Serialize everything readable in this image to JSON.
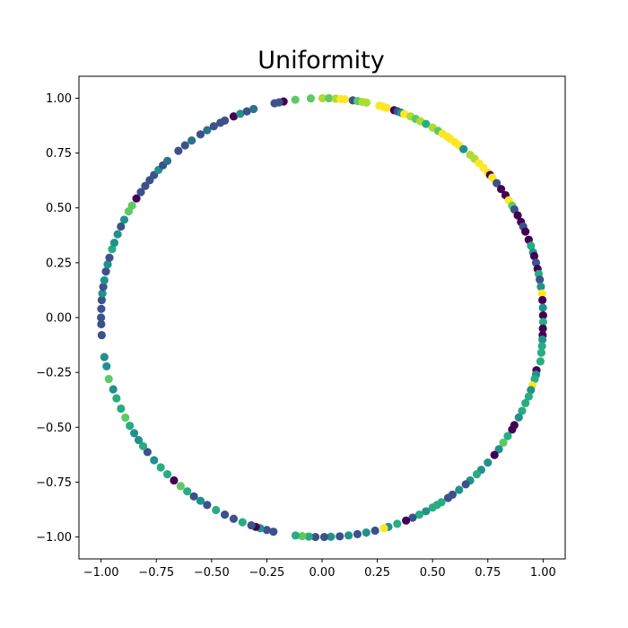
{
  "chart_data": {
    "type": "scatter",
    "title": "Uniformity",
    "xlabel": "",
    "ylabel": "",
    "xlim": [
      -1.1,
      1.1
    ],
    "ylim": [
      -1.1,
      1.1
    ],
    "grid": false,
    "legend": false,
    "colormap": "viridis",
    "xticks": [
      "−1.00",
      "−0.75",
      "−0.50",
      "−0.25",
      "0.00",
      "0.25",
      "0.50",
      "0.75",
      "1.00"
    ],
    "yticks": [
      "1.00",
      "0.75",
      "0.50",
      "0.25",
      "0.00",
      "−0.25",
      "−0.50",
      "−0.75",
      "−1.00"
    ],
    "xtick_values": [
      -1.0,
      -0.75,
      -0.5,
      -0.25,
      0.0,
      0.25,
      0.5,
      0.75,
      1.0
    ],
    "ytick_values": [
      1.0,
      0.75,
      0.5,
      0.25,
      0.0,
      -0.25,
      -0.5,
      -0.75,
      -1.0
    ],
    "colors": {
      "dark_purple": "#440154",
      "indigo": "#3b528b",
      "blue": "#2c728e",
      "teal": "#21918c",
      "green": "#27ad81",
      "light_green": "#5ec962",
      "lime": "#addc30",
      "yellow": "#fde725"
    },
    "points": [
      {
        "x": 0.002,
        "y": 1.0,
        "color": "#addc30"
      },
      {
        "x": 0.031,
        "y": 1.0,
        "color": "#5ec962"
      },
      {
        "x": 0.062,
        "y": 0.998,
        "color": "#addc30"
      },
      {
        "x": -0.051,
        "y": 0.999,
        "color": "#5ec962"
      },
      {
        "x": -0.121,
        "y": 0.993,
        "color": "#5ec962"
      },
      {
        "x": 0.084,
        "y": 0.996,
        "color": "#fde725"
      },
      {
        "x": 0.103,
        "y": 0.995,
        "color": "#fde725"
      },
      {
        "x": 0.139,
        "y": 0.99,
        "color": "#3b528b"
      },
      {
        "x": 0.161,
        "y": 0.987,
        "color": "#5ec962"
      },
      {
        "x": 0.183,
        "y": 0.983,
        "color": "#addc30"
      },
      {
        "x": 0.201,
        "y": 0.98,
        "color": "#addc30"
      },
      {
        "x": -0.174,
        "y": 0.985,
        "color": "#440154"
      },
      {
        "x": -0.195,
        "y": 0.981,
        "color": "#3b528b"
      },
      {
        "x": -0.215,
        "y": 0.977,
        "color": "#3b528b"
      },
      {
        "x": 0.259,
        "y": 0.966,
        "color": "#fde725"
      },
      {
        "x": 0.276,
        "y": 0.961,
        "color": "#fde725"
      },
      {
        "x": 0.292,
        "y": 0.956,
        "color": "#fde725"
      },
      {
        "x": 0.326,
        "y": 0.945,
        "color": "#440154"
      },
      {
        "x": 0.342,
        "y": 0.94,
        "color": "#3b528b"
      },
      {
        "x": 0.358,
        "y": 0.934,
        "color": "#21918c"
      },
      {
        "x": 0.372,
        "y": 0.928,
        "color": "#fde725"
      },
      {
        "x": 0.4,
        "y": 0.917,
        "color": "#addc30"
      },
      {
        "x": 0.423,
        "y": 0.906,
        "color": "#5ec962"
      },
      {
        "x": 0.445,
        "y": 0.895,
        "color": "#addc30"
      },
      {
        "x": 0.47,
        "y": 0.883,
        "color": "#27ad81"
      },
      {
        "x": 0.5,
        "y": 0.866,
        "color": "#addc30"
      },
      {
        "x": 0.525,
        "y": 0.851,
        "color": "#5ec962"
      },
      {
        "x": 0.545,
        "y": 0.838,
        "color": "#fde725"
      },
      {
        "x": 0.565,
        "y": 0.825,
        "color": "#fde725"
      },
      {
        "x": 0.58,
        "y": 0.815,
        "color": "#fde725"
      },
      {
        "x": 0.6,
        "y": 0.8,
        "color": "#fde725"
      },
      {
        "x": 0.62,
        "y": 0.785,
        "color": "#fde725"
      },
      {
        "x": 0.64,
        "y": 0.768,
        "color": "#21918c"
      },
      {
        "x": 0.67,
        "y": 0.742,
        "color": "#addc30"
      },
      {
        "x": 0.69,
        "y": 0.724,
        "color": "#addc30"
      },
      {
        "x": 0.71,
        "y": 0.704,
        "color": "#fde725"
      },
      {
        "x": 0.73,
        "y": 0.683,
        "color": "#fde725"
      },
      {
        "x": 0.75,
        "y": 0.661,
        "color": "#fde725"
      },
      {
        "x": 0.76,
        "y": 0.65,
        "color": "#440154"
      },
      {
        "x": 0.77,
        "y": 0.638,
        "color": "#fde725"
      },
      {
        "x": 0.79,
        "y": 0.613,
        "color": "#3b528b"
      },
      {
        "x": 0.81,
        "y": 0.586,
        "color": "#440154"
      },
      {
        "x": 0.83,
        "y": 0.558,
        "color": "#440154"
      },
      {
        "x": 0.845,
        "y": 0.535,
        "color": "#fde725"
      },
      {
        "x": 0.86,
        "y": 0.51,
        "color": "#5ec962"
      },
      {
        "x": 0.87,
        "y": 0.493,
        "color": "#3b528b"
      },
      {
        "x": 0.885,
        "y": 0.466,
        "color": "#440154"
      },
      {
        "x": 0.9,
        "y": 0.436,
        "color": "#440154"
      },
      {
        "x": 0.91,
        "y": 0.415,
        "color": "#3b528b"
      },
      {
        "x": 0.92,
        "y": 0.392,
        "color": "#440154"
      },
      {
        "x": 0.935,
        "y": 0.355,
        "color": "#440154"
      },
      {
        "x": 0.945,
        "y": 0.327,
        "color": "#27ad81"
      },
      {
        "x": 0.955,
        "y": 0.297,
        "color": "#21918c"
      },
      {
        "x": 0.96,
        "y": 0.28,
        "color": "#440154"
      },
      {
        "x": 0.968,
        "y": 0.25,
        "color": "#3b528b"
      },
      {
        "x": 0.975,
        "y": 0.222,
        "color": "#440154"
      },
      {
        "x": 0.98,
        "y": 0.199,
        "color": "#27ad81"
      },
      {
        "x": 0.985,
        "y": 0.173,
        "color": "#3b528b"
      },
      {
        "x": 0.99,
        "y": 0.141,
        "color": "#21918c"
      },
      {
        "x": 0.995,
        "y": 0.11,
        "color": "#fde725"
      },
      {
        "x": 0.997,
        "y": 0.08,
        "color": "#440154"
      },
      {
        "x": 0.999,
        "y": 0.045,
        "color": "#21918c"
      },
      {
        "x": 1.0,
        "y": 0.01,
        "color": "#440154"
      },
      {
        "x": 1.0,
        "y": -0.02,
        "color": "#27ad81"
      },
      {
        "x": 0.999,
        "y": -0.05,
        "color": "#440154"
      },
      {
        "x": 0.998,
        "y": -0.08,
        "color": "#440154"
      },
      {
        "x": 0.997,
        "y": -0.1,
        "color": "#21918c"
      },
      {
        "x": 0.995,
        "y": -0.13,
        "color": "#27ad81"
      },
      {
        "x": 0.992,
        "y": -0.16,
        "color": "#27ad81"
      },
      {
        "x": 0.988,
        "y": -0.2,
        "color": "#27ad81"
      },
      {
        "x": 0.97,
        "y": -0.24,
        "color": "#440154"
      },
      {
        "x": 0.968,
        "y": -0.26,
        "color": "#21918c"
      },
      {
        "x": 0.962,
        "y": -0.28,
        "color": "#27ad81"
      },
      {
        "x": 0.952,
        "y": -0.31,
        "color": "#fde725"
      },
      {
        "x": 0.945,
        "y": -0.33,
        "color": "#21918c"
      },
      {
        "x": 0.935,
        "y": -0.36,
        "color": "#27ad81"
      },
      {
        "x": 0.92,
        "y": -0.39,
        "color": "#27ad81"
      },
      {
        "x": 0.905,
        "y": -0.425,
        "color": "#27ad81"
      },
      {
        "x": 0.89,
        "y": -0.455,
        "color": "#21918c"
      },
      {
        "x": 0.87,
        "y": -0.49,
        "color": "#440154"
      },
      {
        "x": 0.86,
        "y": -0.51,
        "color": "#440154"
      },
      {
        "x": 0.84,
        "y": -0.54,
        "color": "#27ad81"
      },
      {
        "x": 0.82,
        "y": -0.57,
        "color": "#5ec962"
      },
      {
        "x": 0.8,
        "y": -0.6,
        "color": "#21918c"
      },
      {
        "x": 0.78,
        "y": -0.626,
        "color": "#440154"
      },
      {
        "x": 0.75,
        "y": -0.661,
        "color": "#21918c"
      },
      {
        "x": 0.72,
        "y": -0.694,
        "color": "#21918c"
      },
      {
        "x": 0.7,
        "y": -0.714,
        "color": "#27ad81"
      },
      {
        "x": 0.67,
        "y": -0.742,
        "color": "#21918c"
      },
      {
        "x": 0.65,
        "y": -0.76,
        "color": "#3b528b"
      },
      {
        "x": 0.62,
        "y": -0.785,
        "color": "#21918c"
      },
      {
        "x": 0.59,
        "y": -0.807,
        "color": "#3b528b"
      },
      {
        "x": 0.57,
        "y": -0.822,
        "color": "#3b528b"
      },
      {
        "x": 0.54,
        "y": -0.842,
        "color": "#27ad81"
      },
      {
        "x": 0.52,
        "y": -0.854,
        "color": "#27ad81"
      },
      {
        "x": 0.5,
        "y": -0.866,
        "color": "#27ad81"
      },
      {
        "x": 0.47,
        "y": -0.883,
        "color": "#21918c"
      },
      {
        "x": 0.44,
        "y": -0.898,
        "color": "#27ad81"
      },
      {
        "x": 0.41,
        "y": -0.912,
        "color": "#3b528b"
      },
      {
        "x": 0.38,
        "y": -0.925,
        "color": "#440154"
      },
      {
        "x": 0.34,
        "y": -0.94,
        "color": "#27ad81"
      },
      {
        "x": 0.3,
        "y": -0.954,
        "color": "#21918c"
      },
      {
        "x": 0.28,
        "y": -0.96,
        "color": "#fde725"
      },
      {
        "x": 0.24,
        "y": -0.971,
        "color": "#3b528b"
      },
      {
        "x": 0.2,
        "y": -0.98,
        "color": "#21918c"
      },
      {
        "x": 0.16,
        "y": -0.987,
        "color": "#3b528b"
      },
      {
        "x": 0.12,
        "y": -0.993,
        "color": "#21918c"
      },
      {
        "x": 0.08,
        "y": -0.997,
        "color": "#3b528b"
      },
      {
        "x": 0.04,
        "y": -0.999,
        "color": "#21918c"
      },
      {
        "x": 0.01,
        "y": -1.0,
        "color": "#3b528b"
      },
      {
        "x": -0.03,
        "y": -1.0,
        "color": "#3b528b"
      },
      {
        "x": -0.06,
        "y": -0.998,
        "color": "#27ad81"
      },
      {
        "x": -0.09,
        "y": -0.996,
        "color": "#5ec962"
      },
      {
        "x": -0.12,
        "y": -0.993,
        "color": "#27ad81"
      },
      {
        "x": -0.22,
        "y": -0.976,
        "color": "#3b528b"
      },
      {
        "x": -0.25,
        "y": -0.968,
        "color": "#3b528b"
      },
      {
        "x": -0.28,
        "y": -0.96,
        "color": "#21918c"
      },
      {
        "x": -0.3,
        "y": -0.954,
        "color": "#440154"
      },
      {
        "x": -0.32,
        "y": -0.947,
        "color": "#3b528b"
      },
      {
        "x": -0.36,
        "y": -0.933,
        "color": "#27ad81"
      },
      {
        "x": -0.4,
        "y": -0.917,
        "color": "#3b528b"
      },
      {
        "x": -0.44,
        "y": -0.898,
        "color": "#3b528b"
      },
      {
        "x": -0.48,
        "y": -0.877,
        "color": "#27ad81"
      },
      {
        "x": -0.52,
        "y": -0.854,
        "color": "#3b528b"
      },
      {
        "x": -0.55,
        "y": -0.835,
        "color": "#21918c"
      },
      {
        "x": -0.58,
        "y": -0.815,
        "color": "#3b528b"
      },
      {
        "x": -0.61,
        "y": -0.792,
        "color": "#27ad81"
      },
      {
        "x": -0.64,
        "y": -0.768,
        "color": "#5ec962"
      },
      {
        "x": -0.67,
        "y": -0.742,
        "color": "#440154"
      },
      {
        "x": -0.7,
        "y": -0.714,
        "color": "#27ad81"
      },
      {
        "x": -0.73,
        "y": -0.683,
        "color": "#27ad81"
      },
      {
        "x": -0.76,
        "y": -0.65,
        "color": "#21918c"
      },
      {
        "x": -0.79,
        "y": -0.613,
        "color": "#3b528b"
      },
      {
        "x": -0.81,
        "y": -0.586,
        "color": "#27ad81"
      },
      {
        "x": -0.83,
        "y": -0.558,
        "color": "#21918c"
      },
      {
        "x": -0.85,
        "y": -0.527,
        "color": "#21918c"
      },
      {
        "x": -0.87,
        "y": -0.493,
        "color": "#27ad81"
      },
      {
        "x": -0.89,
        "y": -0.456,
        "color": "#5ec962"
      },
      {
        "x": -0.91,
        "y": -0.415,
        "color": "#27ad81"
      },
      {
        "x": -0.93,
        "y": -0.368,
        "color": "#27ad81"
      },
      {
        "x": -0.945,
        "y": -0.327,
        "color": "#21918c"
      },
      {
        "x": -0.965,
        "y": -0.28,
        "color": "#5ec962"
      },
      {
        "x": -0.975,
        "y": -0.222,
        "color": "#21918c"
      },
      {
        "x": -0.985,
        "y": -0.18,
        "color": "#21918c"
      },
      {
        "x": -0.997,
        "y": -0.08,
        "color": "#3b528b"
      },
      {
        "x": -0.999,
        "y": -0.03,
        "color": "#3b528b"
      },
      {
        "x": -1.0,
        "y": 0.0,
        "color": "#3b528b"
      },
      {
        "x": -0.999,
        "y": 0.04,
        "color": "#3b528b"
      },
      {
        "x": -0.997,
        "y": 0.08,
        "color": "#3b528b"
      },
      {
        "x": -0.994,
        "y": 0.11,
        "color": "#21918c"
      },
      {
        "x": -0.99,
        "y": 0.14,
        "color": "#3b528b"
      },
      {
        "x": -0.985,
        "y": 0.17,
        "color": "#21918c"
      },
      {
        "x": -0.978,
        "y": 0.21,
        "color": "#3b528b"
      },
      {
        "x": -0.97,
        "y": 0.243,
        "color": "#21918c"
      },
      {
        "x": -0.962,
        "y": 0.273,
        "color": "#3b528b"
      },
      {
        "x": -0.95,
        "y": 0.312,
        "color": "#27ad81"
      },
      {
        "x": -0.94,
        "y": 0.341,
        "color": "#21918c"
      },
      {
        "x": -0.925,
        "y": 0.38,
        "color": "#21918c"
      },
      {
        "x": -0.91,
        "y": 0.415,
        "color": "#3b528b"
      },
      {
        "x": -0.895,
        "y": 0.446,
        "color": "#21918c"
      },
      {
        "x": -0.875,
        "y": 0.484,
        "color": "#5ec962"
      },
      {
        "x": -0.86,
        "y": 0.51,
        "color": "#5ec962"
      },
      {
        "x": -0.84,
        "y": 0.543,
        "color": "#440154"
      },
      {
        "x": -0.82,
        "y": 0.572,
        "color": "#3b528b"
      },
      {
        "x": -0.8,
        "y": 0.6,
        "color": "#3b528b"
      },
      {
        "x": -0.78,
        "y": 0.626,
        "color": "#3b528b"
      },
      {
        "x": -0.76,
        "y": 0.65,
        "color": "#3b528b"
      },
      {
        "x": -0.74,
        "y": 0.673,
        "color": "#21918c"
      },
      {
        "x": -0.72,
        "y": 0.694,
        "color": "#3b528b"
      },
      {
        "x": -0.7,
        "y": 0.714,
        "color": "#2c728e"
      },
      {
        "x": -0.65,
        "y": 0.76,
        "color": "#3b528b"
      },
      {
        "x": -0.62,
        "y": 0.785,
        "color": "#3b528b"
      },
      {
        "x": -0.59,
        "y": 0.807,
        "color": "#2c728e"
      },
      {
        "x": -0.55,
        "y": 0.835,
        "color": "#3b528b"
      },
      {
        "x": -0.52,
        "y": 0.854,
        "color": "#2c728e"
      },
      {
        "x": -0.49,
        "y": 0.872,
        "color": "#3b528b"
      },
      {
        "x": -0.46,
        "y": 0.888,
        "color": "#3b528b"
      },
      {
        "x": -0.44,
        "y": 0.898,
        "color": "#3b528b"
      },
      {
        "x": -0.4,
        "y": 0.917,
        "color": "#440154"
      },
      {
        "x": -0.37,
        "y": 0.929,
        "color": "#21918c"
      },
      {
        "x": -0.34,
        "y": 0.94,
        "color": "#3b528b"
      },
      {
        "x": -0.31,
        "y": 0.951,
        "color": "#2c728e"
      }
    ]
  }
}
